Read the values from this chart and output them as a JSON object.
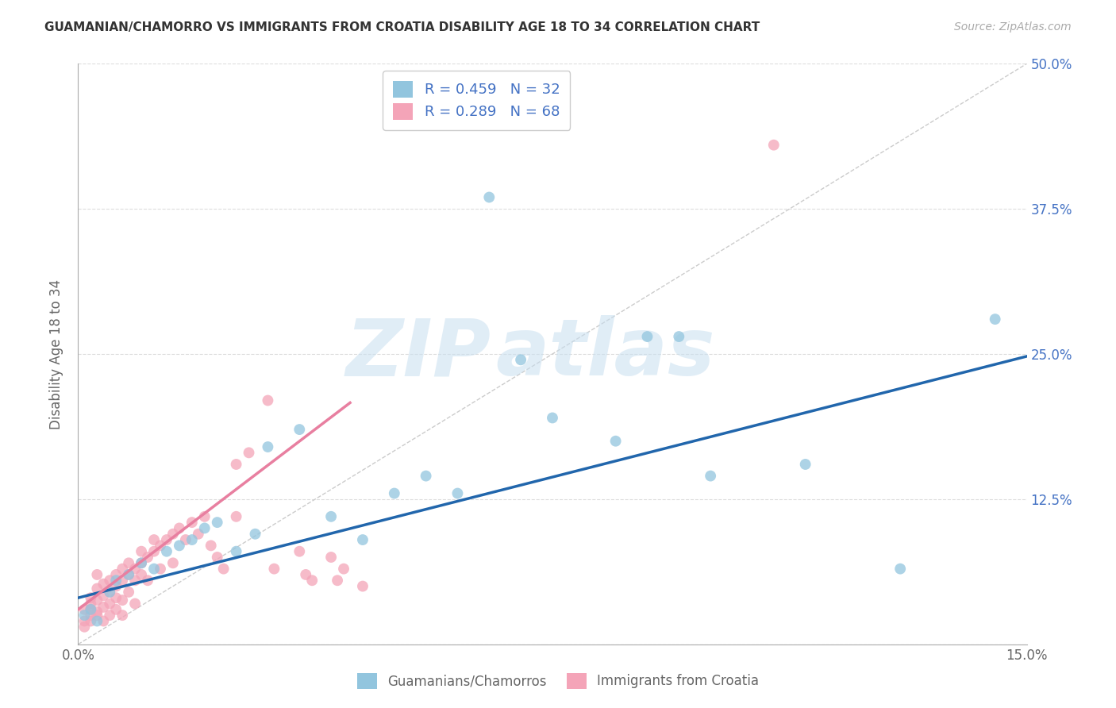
{
  "title": "GUAMANIAN/CHAMORRO VS IMMIGRANTS FROM CROATIA DISABILITY AGE 18 TO 34 CORRELATION CHART",
  "source": "Source: ZipAtlas.com",
  "ylabel": "Disability Age 18 to 34",
  "xlim": [
    0.0,
    0.15
  ],
  "ylim": [
    0.0,
    0.5
  ],
  "blue_color": "#92c5de",
  "pink_color": "#f4a4b8",
  "blue_line_color": "#2166ac",
  "pink_line_color": "#e87fa0",
  "diag_line_color": "#cccccc",
  "legend_R_blue": "R = 0.459",
  "legend_N_blue": "N = 32",
  "legend_R_pink": "R = 0.289",
  "legend_N_pink": "N = 68",
  "legend_label_blue": "Guamanians/Chamorros",
  "legend_label_pink": "Immigrants from Croatia",
  "watermark_zip": "ZIP",
  "watermark_atlas": "atlas",
  "blue_scatter_x": [
    0.001,
    0.002,
    0.003,
    0.005,
    0.006,
    0.008,
    0.01,
    0.012,
    0.014,
    0.016,
    0.018,
    0.02,
    0.022,
    0.025,
    0.028,
    0.03,
    0.035,
    0.04,
    0.045,
    0.05,
    0.055,
    0.06,
    0.065,
    0.07,
    0.075,
    0.085,
    0.09,
    0.095,
    0.1,
    0.115,
    0.13,
    0.145
  ],
  "blue_scatter_y": [
    0.025,
    0.03,
    0.02,
    0.045,
    0.055,
    0.06,
    0.07,
    0.065,
    0.08,
    0.085,
    0.09,
    0.1,
    0.105,
    0.08,
    0.095,
    0.17,
    0.185,
    0.11,
    0.09,
    0.13,
    0.145,
    0.13,
    0.385,
    0.245,
    0.195,
    0.175,
    0.265,
    0.265,
    0.145,
    0.155,
    0.065,
    0.28
  ],
  "pink_scatter_x": [
    0.001,
    0.001,
    0.001,
    0.002,
    0.002,
    0.002,
    0.002,
    0.002,
    0.003,
    0.003,
    0.003,
    0.003,
    0.003,
    0.004,
    0.004,
    0.004,
    0.004,
    0.005,
    0.005,
    0.005,
    0.005,
    0.006,
    0.006,
    0.006,
    0.006,
    0.007,
    0.007,
    0.007,
    0.007,
    0.008,
    0.008,
    0.008,
    0.009,
    0.009,
    0.009,
    0.01,
    0.01,
    0.01,
    0.011,
    0.011,
    0.012,
    0.012,
    0.013,
    0.013,
    0.014,
    0.015,
    0.015,
    0.016,
    0.017,
    0.018,
    0.019,
    0.02,
    0.021,
    0.022,
    0.023,
    0.025,
    0.025,
    0.027,
    0.03,
    0.031,
    0.035,
    0.036,
    0.037,
    0.04,
    0.041,
    0.042,
    0.045,
    0.11
  ],
  "pink_scatter_y": [
    0.02,
    0.03,
    0.015,
    0.025,
    0.035,
    0.02,
    0.03,
    0.04,
    0.028,
    0.038,
    0.048,
    0.025,
    0.06,
    0.032,
    0.042,
    0.052,
    0.02,
    0.045,
    0.055,
    0.035,
    0.025,
    0.05,
    0.06,
    0.04,
    0.03,
    0.055,
    0.065,
    0.038,
    0.025,
    0.06,
    0.07,
    0.045,
    0.065,
    0.055,
    0.035,
    0.07,
    0.08,
    0.06,
    0.075,
    0.055,
    0.08,
    0.09,
    0.085,
    0.065,
    0.09,
    0.095,
    0.07,
    0.1,
    0.09,
    0.105,
    0.095,
    0.11,
    0.085,
    0.075,
    0.065,
    0.155,
    0.11,
    0.165,
    0.21,
    0.065,
    0.08,
    0.06,
    0.055,
    0.075,
    0.055,
    0.065,
    0.05,
    0.43
  ],
  "blue_line_x0": 0.0,
  "blue_line_x1": 0.15,
  "blue_line_y0": 0.04,
  "blue_line_y1": 0.248,
  "pink_line_x0": 0.0,
  "pink_line_x1": 0.043,
  "pink_line_y0": 0.03,
  "pink_line_y1": 0.208,
  "diag_line_x0": 0.0,
  "diag_line_x1": 0.15,
  "diag_line_y0": 0.0,
  "diag_line_y1": 0.5,
  "background_color": "#ffffff",
  "grid_color": "#dddddd"
}
